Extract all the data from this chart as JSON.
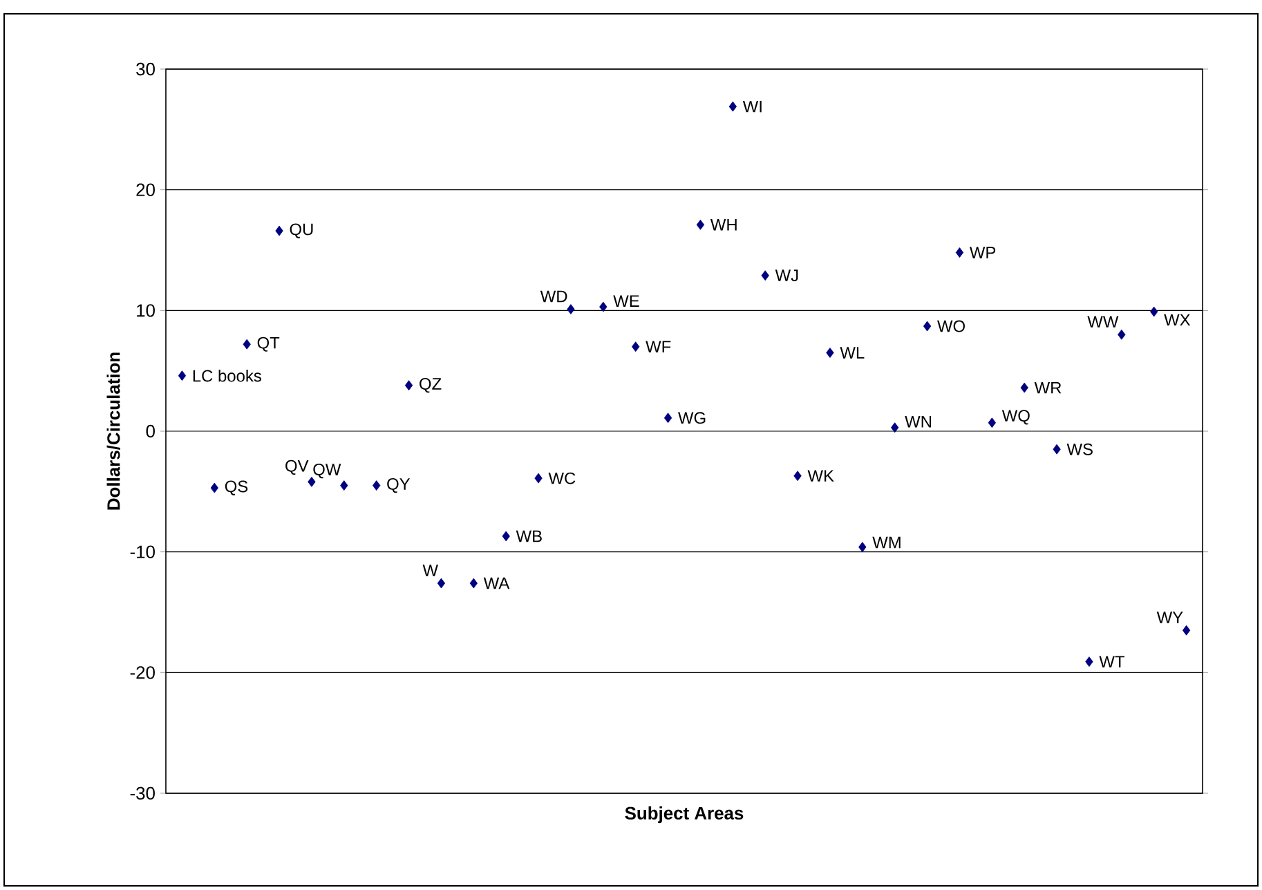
{
  "chart_data": {
    "type": "scatter",
    "xlabel": "Subject Areas",
    "ylabel": "Dollars/Circulation",
    "categories": [
      null,
      null,
      null,
      null,
      null,
      null,
      null,
      null,
      null,
      null,
      null,
      null,
      null,
      null,
      null,
      null,
      null,
      null,
      null,
      null,
      null,
      null,
      null,
      null,
      null,
      null,
      null,
      null,
      null,
      null,
      null,
      null
    ],
    "values": [
      4.6,
      -4.7,
      7.2,
      16.6,
      -4.2,
      -4.5,
      -4.5,
      3.8,
      -12.6,
      -12.6,
      -8.7,
      -3.9,
      10.1,
      10.3,
      7.0,
      1.1,
      17.1,
      26.9,
      12.9,
      -3.7,
      6.5,
      -9.6,
      0.3,
      8.7,
      14.8,
      0.7,
      3.6,
      -1.5,
      -19.1,
      8.0,
      9.9,
      -16.5
    ],
    "value_labels": [
      "LC books",
      "QS",
      "QT",
      "QU",
      "QV",
      "QW",
      "QY",
      "QZ",
      "W",
      "WA",
      "WB",
      "WC",
      "WD",
      "WE",
      "WF",
      "WG",
      "WH",
      "WI",
      "WJ",
      "WK",
      "WL",
      "WM",
      "WN",
      "WO",
      "WP",
      "WQ",
      "WR",
      "WS",
      "WT",
      "WW",
      "WX",
      "WY"
    ],
    "color": "#000080",
    "marker": "diamond",
    "ylim": [
      -30,
      30
    ],
    "yticks": [
      -30,
      -20,
      -10,
      0,
      10,
      20,
      30
    ],
    "grid": "y",
    "tick_labels": "y"
  }
}
